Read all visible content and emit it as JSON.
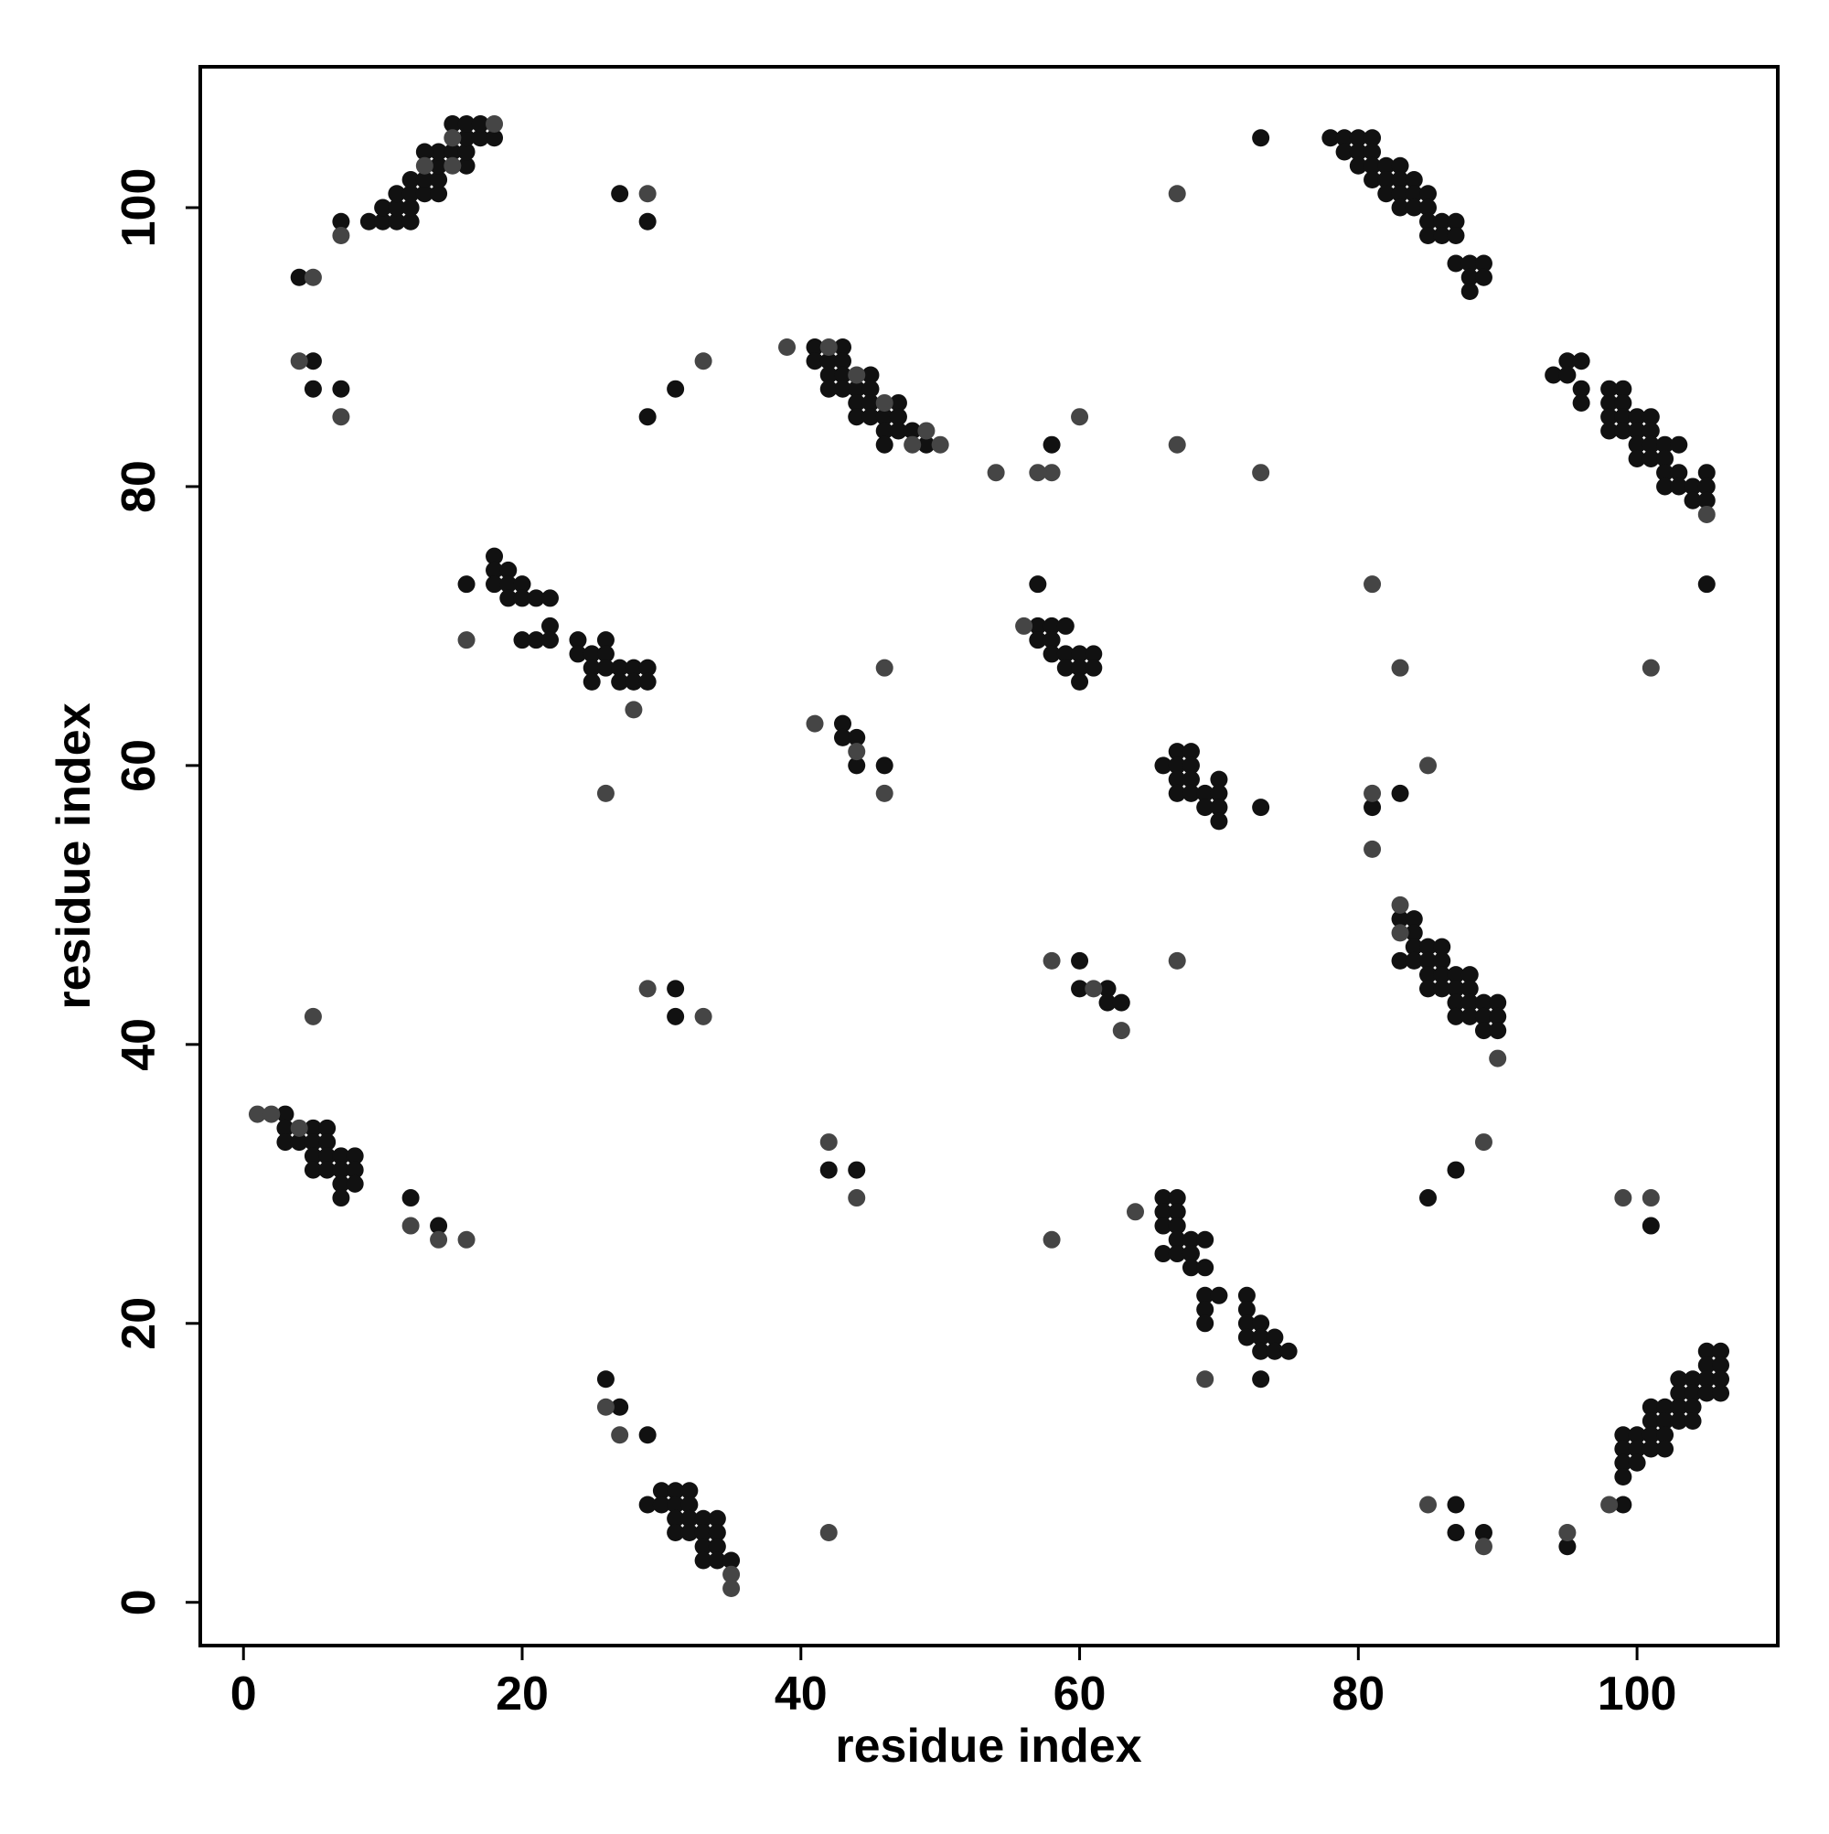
{
  "chart_data": {
    "type": "scatter",
    "xlabel": "residue index",
    "ylabel": "residue index",
    "xlim": [
      -3.1,
      110.1
    ],
    "ylim": [
      -3.1,
      110.1
    ],
    "xticks": [
      0,
      20,
      40,
      60,
      80,
      100
    ],
    "yticks": [
      0,
      20,
      40,
      60,
      80,
      100
    ],
    "series": [
      {
        "color": "#111111",
        "x": [
          7,
          9,
          10,
          10,
          11,
          11,
          11,
          12,
          12,
          12,
          12,
          13,
          13,
          14,
          14,
          14,
          14,
          13,
          15,
          15,
          16,
          16,
          16,
          16,
          17,
          17,
          18,
          4,
          27,
          29,
          5,
          5,
          7,
          29,
          31,
          41,
          41,
          42,
          42,
          42,
          43,
          43,
          43,
          43,
          44,
          44,
          44,
          45,
          45,
          45,
          45,
          46,
          46,
          46,
          47,
          47,
          47,
          48,
          49,
          58,
          73,
          78,
          79,
          79,
          80,
          80,
          80,
          81,
          81,
          81,
          81,
          82,
          82,
          82,
          83,
          83,
          83,
          83,
          84,
          84,
          84,
          85,
          85,
          85,
          85,
          86,
          86,
          87,
          87,
          87,
          88,
          88,
          88,
          89,
          89,
          94,
          95,
          95,
          96,
          96,
          96,
          98,
          98,
          98,
          98,
          99,
          99,
          99,
          99,
          100,
          100,
          100,
          100,
          101,
          101,
          101,
          101,
          102,
          102,
          102,
          102,
          103,
          103,
          103,
          104,
          104,
          105,
          105,
          105,
          105,
          16,
          18,
          18,
          18,
          19,
          19,
          19,
          20,
          20,
          20,
          21,
          21,
          22,
          22,
          22,
          24,
          24,
          25,
          25,
          25,
          26,
          26,
          26,
          27,
          27,
          28,
          28,
          29,
          29,
          57,
          57,
          57,
          58,
          58,
          58,
          59,
          59,
          59,
          60,
          60,
          60,
          61,
          61,
          43,
          43,
          44,
          44,
          46,
          66,
          67,
          67,
          67,
          67,
          68,
          68,
          68,
          68,
          69,
          69,
          70,
          70,
          70,
          70,
          73,
          81,
          83,
          83,
          83,
          84,
          84,
          84,
          84,
          85,
          85,
          85,
          85,
          86,
          86,
          86,
          86,
          87,
          87,
          87,
          87,
          88,
          88,
          88,
          88,
          89,
          89,
          89,
          90,
          90,
          90,
          60,
          60,
          62,
          62,
          63,
          31,
          31,
          3,
          3,
          3,
          4,
          5,
          5,
          5,
          5,
          6,
          6,
          6,
          6,
          7,
          7,
          7,
          7,
          8,
          8,
          8,
          12,
          14,
          42,
          44,
          66,
          66,
          66,
          66,
          67,
          67,
          67,
          67,
          67,
          68,
          68,
          68,
          69,
          69,
          69,
          69,
          69,
          70,
          72,
          72,
          72,
          72,
          73,
          73,
          73,
          74,
          74,
          75,
          73,
          85,
          87,
          101,
          99,
          99,
          99,
          99,
          99,
          100,
          100,
          100,
          101,
          101,
          101,
          101,
          102,
          102,
          102,
          102,
          103,
          103,
          103,
          103,
          104,
          104,
          104,
          104,
          105,
          105,
          105,
          105,
          106,
          106,
          106,
          106,
          87,
          87,
          89,
          95,
          26,
          27,
          29,
          29,
          30,
          30,
          31,
          31,
          31,
          31,
          32,
          32,
          32,
          32,
          33,
          33,
          33,
          33,
          34,
          34,
          34,
          34,
          35
        ],
        "y": [
          99,
          99,
          99,
          100,
          99,
          100,
          101,
          99,
          100,
          101,
          102,
          101,
          102,
          101,
          102,
          103,
          104,
          104,
          104,
          106,
          103,
          104,
          105,
          106,
          105,
          106,
          105,
          95,
          101,
          99,
          89,
          87,
          87,
          85,
          87,
          90,
          89,
          89,
          88,
          87,
          90,
          89,
          88,
          87,
          87,
          86,
          85,
          88,
          87,
          86,
          85,
          85,
          84,
          83,
          86,
          85,
          84,
          84,
          83,
          83,
          105,
          105,
          105,
          104,
          105,
          104,
          103,
          105,
          104,
          103,
          102,
          103,
          102,
          101,
          103,
          102,
          101,
          100,
          102,
          101,
          100,
          101,
          100,
          99,
          98,
          99,
          98,
          99,
          98,
          96,
          96,
          95,
          94,
          96,
          95,
          88,
          89,
          88,
          89,
          87,
          86,
          87,
          86,
          85,
          84,
          87,
          86,
          85,
          84,
          85,
          84,
          83,
          82,
          85,
          84,
          83,
          82,
          83,
          82,
          81,
          80,
          83,
          81,
          80,
          80,
          79,
          81,
          80,
          79,
          73,
          73,
          75,
          74,
          73,
          74,
          73,
          72,
          73,
          72,
          69,
          72,
          69,
          72,
          70,
          69,
          69,
          68,
          68,
          67,
          66,
          69,
          68,
          67,
          67,
          66,
          67,
          66,
          67,
          66,
          73,
          70,
          69,
          70,
          69,
          68,
          70,
          68,
          67,
          68,
          67,
          66,
          68,
          67,
          63,
          62,
          62,
          60,
          60,
          60,
          61,
          60,
          59,
          58,
          61,
          60,
          59,
          58,
          58,
          57,
          59,
          58,
          57,
          56,
          57,
          57,
          58,
          49,
          46,
          49,
          48,
          47,
          46,
          47,
          46,
          45,
          44,
          47,
          46,
          45,
          44,
          45,
          44,
          43,
          42,
          45,
          44,
          43,
          42,
          43,
          42,
          41,
          43,
          42,
          41,
          46,
          44,
          44,
          43,
          43,
          44,
          42,
          35,
          34,
          33,
          33,
          34,
          33,
          32,
          31,
          34,
          33,
          32,
          31,
          32,
          31,
          30,
          29,
          32,
          31,
          30,
          29,
          27,
          31,
          31,
          29,
          28,
          27,
          25,
          29,
          28,
          27,
          26,
          25,
          26,
          25,
          24,
          26,
          24,
          22,
          21,
          20,
          22,
          22,
          21,
          20,
          19,
          20,
          19,
          18,
          19,
          18,
          18,
          16,
          29,
          31,
          27,
          12,
          11,
          10,
          9,
          7,
          12,
          11,
          10,
          14,
          13,
          12,
          11,
          14,
          13,
          12,
          11,
          16,
          15,
          14,
          13,
          16,
          15,
          14,
          13,
          18,
          17,
          16,
          15,
          18,
          17,
          16,
          15,
          7,
          5,
          5,
          4,
          16,
          14,
          12,
          7,
          8,
          7,
          8,
          7,
          6,
          5,
          8,
          7,
          6,
          5,
          6,
          5,
          4,
          3,
          6,
          5,
          4,
          3,
          3
        ]
      },
      {
        "color": "#454545",
        "x": [
          7,
          13,
          15,
          15,
          18,
          5,
          29,
          4,
          7,
          33,
          42,
          44,
          46,
          48,
          49,
          50,
          58,
          60,
          67,
          67,
          73,
          16,
          54,
          57,
          28,
          26,
          46,
          46,
          41,
          44,
          81,
          83,
          101,
          85,
          81,
          81,
          83,
          83,
          90,
          58,
          61,
          63,
          67,
          5,
          29,
          33,
          1,
          2,
          4,
          12,
          14,
          16,
          42,
          44,
          58,
          64,
          69,
          89,
          99,
          101,
          98,
          85,
          89,
          95,
          26,
          27,
          42,
          35,
          35,
          105,
          56,
          39
        ],
        "y": [
          98,
          103,
          103,
          105,
          106,
          95,
          101,
          89,
          85,
          89,
          90,
          88,
          86,
          83,
          84,
          83,
          81,
          85,
          101,
          83,
          81,
          69,
          81,
          81,
          64,
          58,
          67,
          58,
          63,
          61,
          73,
          67,
          67,
          60,
          58,
          54,
          50,
          48,
          39,
          46,
          44,
          41,
          46,
          42,
          44,
          42,
          35,
          35,
          34,
          27,
          26,
          26,
          33,
          29,
          26,
          28,
          16,
          33,
          29,
          29,
          7,
          7,
          4,
          5,
          14,
          12,
          5,
          2,
          1,
          78,
          70,
          90
        ]
      }
    ]
  }
}
